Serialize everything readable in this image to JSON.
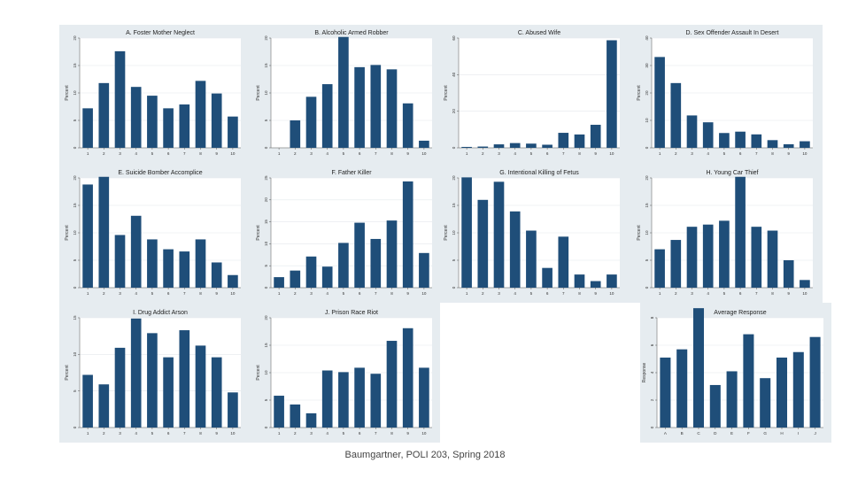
{
  "colors": {
    "bar": "#1f4e79",
    "plot_bg": "#ffffff",
    "panel_bg": "#e6ecf0",
    "grid": "#e3e8ec"
  },
  "footer": "Baumgartner, POLI 203, Spring 2018",
  "chart_data": [
    {
      "type": "bar",
      "title": "A. Foster Mother Neglect",
      "ylabel": "Percent",
      "ylim": [
        0,
        20
      ],
      "yticks": [
        0,
        5,
        10,
        15,
        20
      ],
      "categories": [
        "1",
        "2",
        "3",
        "4",
        "5",
        "6",
        "7",
        "8",
        "9",
        "10"
      ],
      "values": [
        7.2,
        11.8,
        17.6,
        11.1,
        9.5,
        7.2,
        7.9,
        12.2,
        9.9,
        5.7
      ]
    },
    {
      "type": "bar",
      "title": "B. Alcoholic Armed Robber",
      "ylabel": "Percent",
      "ylim": [
        0,
        20
      ],
      "yticks": [
        0,
        5,
        10,
        15,
        20
      ],
      "categories": [
        "1",
        "2",
        "3",
        "4",
        "5",
        "6",
        "7",
        "8",
        "9",
        "10"
      ],
      "values": [
        0,
        5,
        9.3,
        11.6,
        20.2,
        14.7,
        15.1,
        14.3,
        8.1,
        1.3
      ]
    },
    {
      "type": "bar",
      "title": "C. Abused Wife",
      "ylabel": "Percent",
      "ylim": [
        0,
        60
      ],
      "yticks": [
        0,
        20,
        40,
        60
      ],
      "categories": [
        "1",
        "2",
        "3",
        "4",
        "5",
        "6",
        "7",
        "8",
        "9",
        "10"
      ],
      "values": [
        0.5,
        0.7,
        1.9,
        2.6,
        2.3,
        1.7,
        8.2,
        7.3,
        12.6,
        58.8
      ]
    },
    {
      "type": "bar",
      "title": "D. Sex Offender Assault In Desert",
      "ylabel": "Percent",
      "ylim": [
        0,
        40
      ],
      "yticks": [
        0,
        10,
        20,
        30,
        40
      ],
      "categories": [
        "1",
        "2",
        "3",
        "4",
        "5",
        "6",
        "7",
        "8",
        "9",
        "10"
      ],
      "values": [
        33.1,
        23.6,
        11.8,
        9.3,
        5.4,
        5.9,
        4.9,
        2.8,
        1.3,
        2.4
      ]
    },
    {
      "type": "bar",
      "title": "E. Suicide Bomber Accomplice",
      "ylabel": "Percent",
      "ylim": [
        0,
        20
      ],
      "yticks": [
        0,
        5,
        10,
        15,
        20
      ],
      "categories": [
        "1",
        "2",
        "3",
        "4",
        "5",
        "6",
        "7",
        "8",
        "9",
        "10"
      ],
      "values": [
        18.8,
        20.2,
        9.6,
        13.1,
        8.8,
        7,
        6.6,
        8.8,
        4.6,
        2.3
      ]
    },
    {
      "type": "bar",
      "title": "F. Father Killer",
      "ylabel": "Percent",
      "ylim": [
        0,
        25
      ],
      "yticks": [
        0,
        5,
        10,
        15,
        20,
        25
      ],
      "categories": [
        "1",
        "2",
        "3",
        "4",
        "5",
        "6",
        "7",
        "8",
        "9",
        "10"
      ],
      "values": [
        2.4,
        3.9,
        7.1,
        4.8,
        10.2,
        14.8,
        11.1,
        15.3,
        24.2,
        7.9
      ]
    },
    {
      "type": "bar",
      "title": "G. Intentional Killing of Fetus",
      "ylabel": "Percent",
      "ylim": [
        0,
        20
      ],
      "yticks": [
        0,
        5,
        10,
        15,
        20
      ],
      "categories": [
        "1",
        "2",
        "3",
        "4",
        "5",
        "6",
        "7",
        "8",
        "9",
        "10"
      ],
      "values": [
        20.1,
        16,
        19.3,
        13.9,
        10.4,
        3.6,
        9.3,
        2.4,
        1.2,
        2.4
      ]
    },
    {
      "type": "bar",
      "title": "H. Young Car Thief",
      "ylabel": "Percent",
      "ylim": [
        0,
        20
      ],
      "yticks": [
        0,
        5,
        10,
        15,
        20
      ],
      "categories": [
        "1",
        "2",
        "3",
        "4",
        "5",
        "6",
        "7",
        "8",
        "9",
        "10"
      ],
      "values": [
        7,
        8.7,
        11.1,
        11.5,
        12.2,
        20.2,
        11.1,
        10.4,
        5,
        1.4
      ]
    },
    {
      "type": "bar",
      "title": "I. Drug Addict Arson",
      "ylabel": "Percent",
      "ylim": [
        0,
        15
      ],
      "yticks": [
        0,
        5,
        10,
        15
      ],
      "categories": [
        "1",
        "2",
        "3",
        "4",
        "5",
        "6",
        "7",
        "8",
        "9",
        "10"
      ],
      "values": [
        7.2,
        5.9,
        10.9,
        14.9,
        12.9,
        9.6,
        13.3,
        11.2,
        9.6,
        4.8
      ]
    },
    {
      "type": "bar",
      "title": "J. Prison Race Riot",
      "ylabel": "Percent",
      "ylim": [
        0,
        20
      ],
      "yticks": [
        0,
        5,
        10,
        15,
        20
      ],
      "categories": [
        "1",
        "2",
        "3",
        "4",
        "5",
        "6",
        "7",
        "8",
        "9",
        "10"
      ],
      "values": [
        5.8,
        4.2,
        2.6,
        10.4,
        10.1,
        10.9,
        9.8,
        15.8,
        18.1,
        10.9
      ]
    },
    {
      "type": "bar",
      "title": "Average Response",
      "ylabel": "Response",
      "ylim": [
        0,
        8
      ],
      "yticks": [
        0,
        2,
        4,
        6,
        8
      ],
      "categories": [
        "A",
        "B",
        "C",
        "D",
        "E",
        "F",
        "G",
        "H",
        "I",
        "J"
      ],
      "values": [
        5.1,
        5.7,
        8.7,
        3.1,
        4.1,
        6.8,
        3.6,
        5.1,
        5.5,
        6.6
      ]
    }
  ]
}
